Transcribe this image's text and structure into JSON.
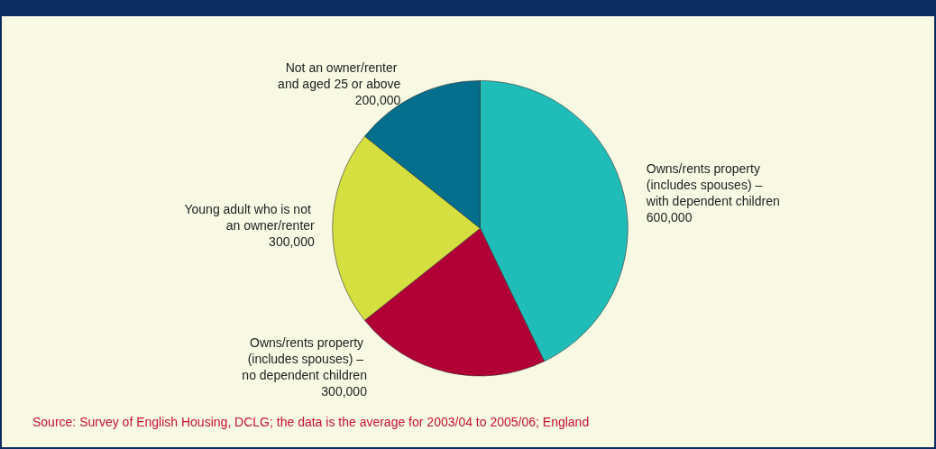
{
  "chart_data": {
    "type": "pie",
    "categories": [
      "Owns/rents property (includes spouses) – with dependent children",
      "Owns/rents property (includes spouses) – no dependent children",
      "Young adult who is not an owner/renter",
      "Not an owner/renter and aged 25 or above"
    ],
    "values": [
      600000,
      300000,
      300000,
      200000
    ],
    "colors": [
      "#20bdb8",
      "#b10035",
      "#d5df3f",
      "#046f8c"
    ],
    "value_labels": [
      "600,000",
      "300,000",
      "300,000",
      "200,000"
    ],
    "legend": false,
    "annotations": [
      "Source: Survey of English Housing, DCLG; the data is the average for 2003/04 to 2005/06; England"
    ]
  }
}
